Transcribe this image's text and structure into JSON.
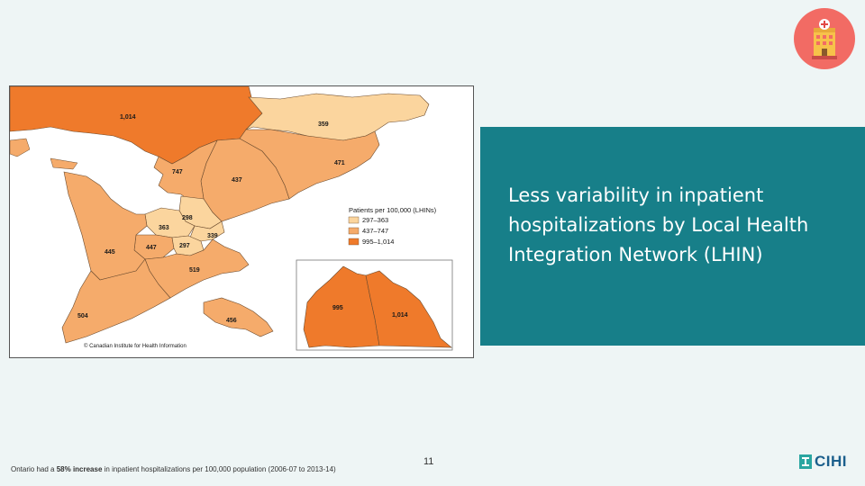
{
  "slide": {
    "title": "Less variability in inpatient hospitalizations by Local Health Integration Network (LHIN)",
    "page_number": "11",
    "footnote": {
      "prefix": "Ontario had a ",
      "emphasis": "58% increase",
      "suffix": " in inpatient hospitalizations per 100,000 population (2006-07 to 2013-14)"
    },
    "logo_text": "CIHI",
    "badge_icon": "hospital-icon"
  },
  "map": {
    "copyright": "© Canadian Institute for Health Information",
    "legend": {
      "title": "Patients per 100,000 (LHINs)",
      "items": [
        {
          "label": "297–363",
          "color": "#fbd59e"
        },
        {
          "label": "437–747",
          "color": "#f5ab6b"
        },
        {
          "label": "995–1,014",
          "color": "#ef7a2b"
        }
      ]
    },
    "region_labels": {
      "nw_main": "1,014",
      "ne_main": "359",
      "east_471": "471",
      "c_747": "747",
      "c_437": "437",
      "c_298": "298",
      "c_363": "363",
      "c_339": "339",
      "c_447": "447",
      "c_297": "297",
      "c_445": "445",
      "c_519": "519",
      "c_504": "504",
      "c_456": "456",
      "inset_995": "995",
      "inset_1014": "1,014"
    },
    "colors": {
      "water": "#ffffff",
      "border": "#555555"
    }
  },
  "colors": {
    "background": "#eef5f5",
    "panel": "#177f89",
    "badge": "#f26b64",
    "logo": "#1b5f8c"
  }
}
